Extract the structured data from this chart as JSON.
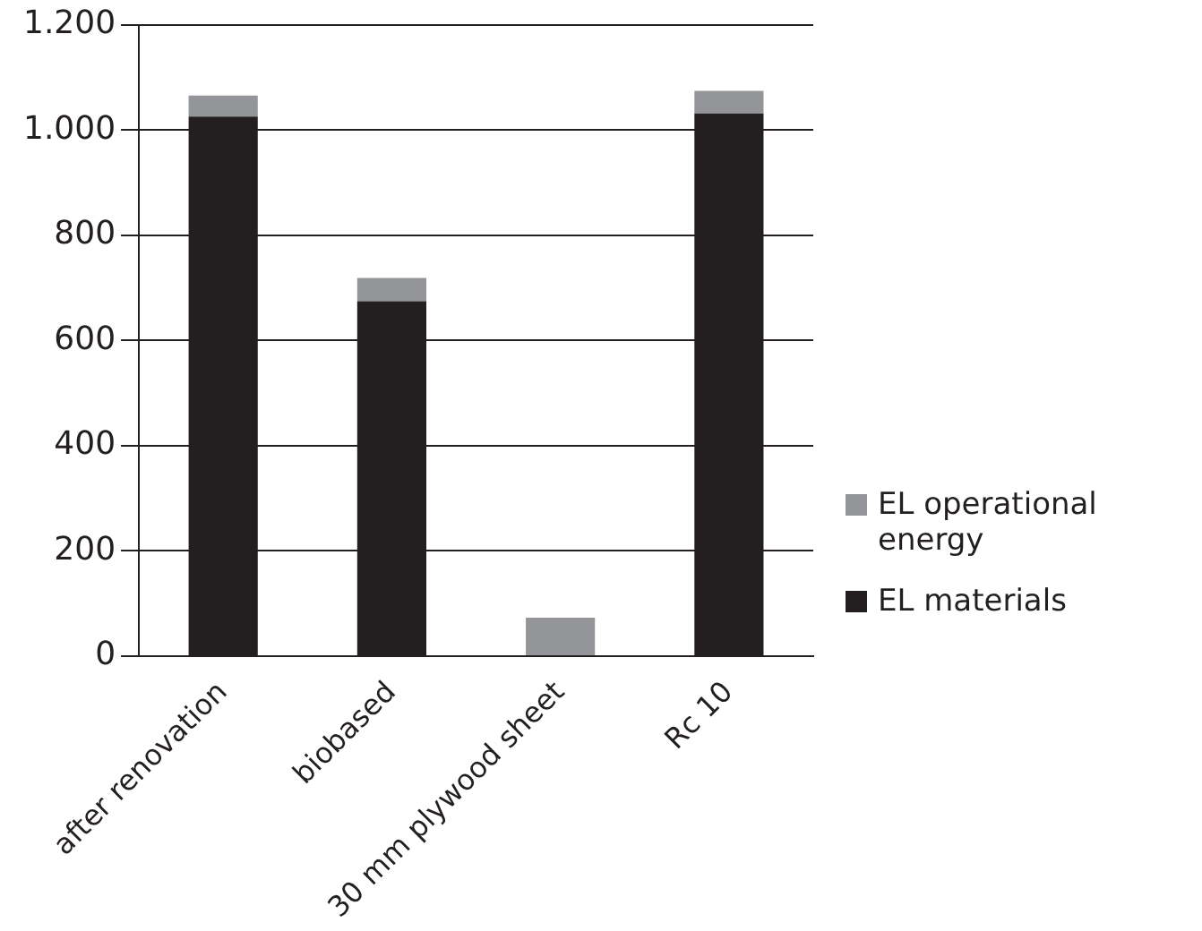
{
  "chart_data": {
    "type": "bar",
    "stacked": true,
    "categories": [
      "after renovation",
      "biobased",
      "30 mm plywood sheet",
      "Rc 10"
    ],
    "series": [
      {
        "name": "EL materials",
        "color": "#231f20",
        "values": [
          1026,
          675,
          0,
          1032
        ]
      },
      {
        "name": "EL operational energy",
        "color": "#939598",
        "values": [
          40,
          44,
          73,
          43
        ]
      }
    ],
    "ylim": [
      0,
      1200
    ],
    "yticks": [
      0,
      200,
      400,
      600,
      800,
      {
        "value": 1000,
        "label": "1.000"
      },
      {
        "value": 1200,
        "label": "1.200"
      }
    ],
    "grid": "y",
    "legend": "right"
  }
}
